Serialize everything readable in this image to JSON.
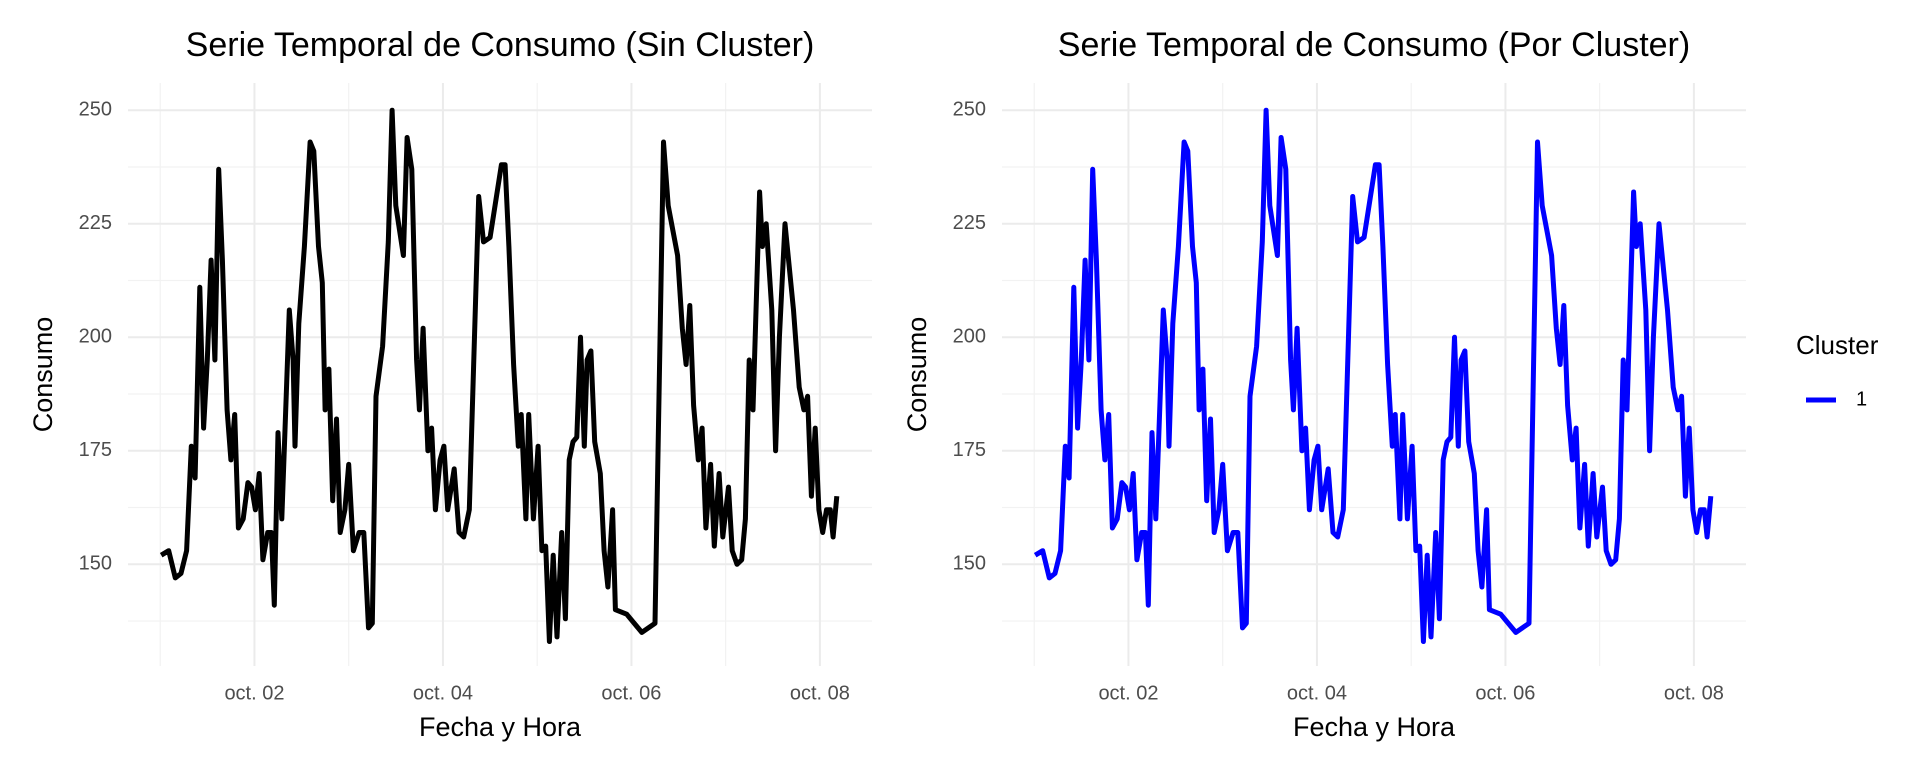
{
  "chart_data": [
    {
      "type": "line",
      "title": "Serie Temporal de Consumo (Sin Cluster)",
      "x_label": "Fecha y Hora",
      "y_label": "Consumo",
      "color": "#000000",
      "grid": true,
      "minor_grid": true,
      "x": [
        1.01,
        1.09,
        1.16,
        1.22,
        1.28,
        1.33,
        1.37,
        1.42,
        1.46,
        1.5,
        1.54,
        1.58,
        1.62,
        1.66,
        1.71,
        1.75,
        1.79,
        1.83,
        1.88,
        1.93,
        1.97,
        2.01,
        2.05,
        2.09,
        2.14,
        2.18,
        2.21,
        2.25,
        2.29,
        2.37,
        2.41,
        2.43,
        2.47,
        2.53,
        2.59,
        2.63,
        2.68,
        2.72,
        2.75,
        2.79,
        2.83,
        2.87,
        2.91,
        2.96,
        3.0,
        3.05,
        3.11,
        3.16,
        3.21,
        3.25,
        3.29,
        3.36,
        3.42,
        3.46,
        3.5,
        3.58,
        3.62,
        3.67,
        3.72,
        3.75,
        3.79,
        3.84,
        3.88,
        3.92,
        3.97,
        4.01,
        4.05,
        4.12,
        4.17,
        4.22,
        4.28,
        4.38,
        4.43,
        4.5,
        4.62,
        4.66,
        4.7,
        4.75,
        4.8,
        4.83,
        4.88,
        4.91,
        4.96,
        5.01,
        5.05,
        5.09,
        5.13,
        5.17,
        5.21,
        5.26,
        5.3,
        5.34,
        5.38,
        5.42,
        5.46,
        5.5,
        5.53,
        5.57,
        5.61,
        5.67,
        5.71,
        5.75,
        5.8,
        5.83,
        5.95,
        6.11,
        6.25,
        6.34,
        6.39,
        6.49,
        6.54,
        6.58,
        6.62,
        6.66,
        6.71,
        6.75,
        6.79,
        6.84,
        6.88,
        6.93,
        6.97,
        7.03,
        7.07,
        7.12,
        7.17,
        7.21,
        7.25,
        7.29,
        7.36,
        7.39,
        7.43,
        7.49,
        7.53,
        7.57,
        7.63,
        7.72,
        7.78,
        7.83,
        7.87,
        7.91,
        7.95,
        7.99,
        8.03,
        8.07,
        8.11,
        8.14,
        8.18
      ],
      "values": [
        152,
        153,
        147,
        148,
        153,
        176,
        169,
        211,
        180,
        195,
        217,
        195,
        237,
        217,
        184,
        173,
        183,
        158,
        160,
        168,
        167,
        162,
        170,
        151,
        157,
        157,
        141,
        179,
        160,
        206,
        195,
        176,
        203,
        220,
        243,
        241,
        220,
        212,
        184,
        193,
        164,
        182,
        157,
        162,
        172,
        153,
        157,
        157,
        136,
        137,
        187,
        198,
        221,
        250,
        229,
        218,
        244,
        237,
        195,
        184,
        202,
        175,
        180,
        162,
        173,
        176,
        162,
        171,
        157,
        156,
        162,
        231,
        221,
        222,
        238,
        238,
        220,
        194,
        176,
        183,
        160,
        183,
        160,
        176,
        153,
        154,
        133,
        152,
        134,
        157,
        138,
        173,
        177,
        178,
        200,
        176,
        195,
        197,
        177,
        170,
        153,
        145,
        162,
        140,
        139,
        135,
        137,
        243,
        229,
        218,
        202,
        194,
        207,
        185,
        173,
        180,
        158,
        172,
        154,
        170,
        156,
        167,
        153,
        150,
        151,
        160,
        195,
        184,
        232,
        220,
        225,
        206,
        175,
        200,
        225,
        206,
        189,
        184,
        187,
        165,
        180,
        162,
        157,
        162,
        162,
        156,
        165
      ],
      "xlim": [
        0.658,
        8.553
      ],
      "xticks": [
        {
          "value": 2,
          "label": "oct. 02"
        },
        {
          "value": 4,
          "label": "oct. 04"
        },
        {
          "value": 6,
          "label": "oct. 06"
        },
        {
          "value": 8,
          "label": "oct. 08"
        }
      ],
      "ylim": [
        127.6,
        256
      ],
      "yticks": [
        150,
        175,
        200,
        225,
        250
      ]
    },
    {
      "type": "line",
      "title": "Serie Temporal de Consumo (Por Cluster)",
      "x_label": "Fecha y Hora",
      "y_label": "Consumo",
      "grid": true,
      "minor_grid": true,
      "legend_title": "Cluster",
      "legend": "right",
      "x": [
        1.01,
        1.09,
        1.16,
        1.22,
        1.28,
        1.33,
        1.37,
        1.42,
        1.46,
        1.5,
        1.54,
        1.58,
        1.62,
        1.66,
        1.71,
        1.75,
        1.79,
        1.83,
        1.88,
        1.93,
        1.97,
        2.01,
        2.05,
        2.09,
        2.14,
        2.18,
        2.21,
        2.25,
        2.29,
        2.37,
        2.41,
        2.43,
        2.47,
        2.53,
        2.59,
        2.63,
        2.68,
        2.72,
        2.75,
        2.79,
        2.83,
        2.87,
        2.91,
        2.96,
        3.0,
        3.05,
        3.11,
        3.16,
        3.21,
        3.25,
        3.29,
        3.36,
        3.42,
        3.46,
        3.5,
        3.58,
        3.62,
        3.67,
        3.72,
        3.75,
        3.79,
        3.84,
        3.88,
        3.92,
        3.97,
        4.01,
        4.05,
        4.12,
        4.17,
        4.22,
        4.28,
        4.38,
        4.43,
        4.5,
        4.62,
        4.66,
        4.7,
        4.75,
        4.8,
        4.83,
        4.88,
        4.91,
        4.96,
        5.01,
        5.05,
        5.09,
        5.13,
        5.17,
        5.21,
        5.26,
        5.3,
        5.34,
        5.38,
        5.42,
        5.46,
        5.5,
        5.53,
        5.57,
        5.61,
        5.67,
        5.71,
        5.75,
        5.8,
        5.83,
        5.95,
        6.11,
        6.25,
        6.34,
        6.39,
        6.49,
        6.54,
        6.58,
        6.62,
        6.66,
        6.71,
        6.75,
        6.79,
        6.84,
        6.88,
        6.93,
        6.97,
        7.03,
        7.07,
        7.12,
        7.17,
        7.21,
        7.25,
        7.29,
        7.36,
        7.39,
        7.43,
        7.49,
        7.53,
        7.57,
        7.63,
        7.72,
        7.78,
        7.83,
        7.87,
        7.91,
        7.95,
        7.99,
        8.03,
        8.07,
        8.11,
        8.14,
        8.18
      ],
      "series": [
        {
          "name": "1",
          "color": "#0000ff",
          "values": [
            152,
            153,
            147,
            148,
            153,
            176,
            169,
            211,
            180,
            195,
            217,
            195,
            237,
            217,
            184,
            173,
            183,
            158,
            160,
            168,
            167,
            162,
            170,
            151,
            157,
            157,
            141,
            179,
            160,
            206,
            195,
            176,
            203,
            220,
            243,
            241,
            220,
            212,
            184,
            193,
            164,
            182,
            157,
            162,
            172,
            153,
            157,
            157,
            136,
            137,
            187,
            198,
            221,
            250,
            229,
            218,
            244,
            237,
            195,
            184,
            202,
            175,
            180,
            162,
            173,
            176,
            162,
            171,
            157,
            156,
            162,
            231,
            221,
            222,
            238,
            238,
            220,
            194,
            176,
            183,
            160,
            183,
            160,
            176,
            153,
            154,
            133,
            152,
            134,
            157,
            138,
            173,
            177,
            178,
            200,
            176,
            195,
            197,
            177,
            170,
            153,
            145,
            162,
            140,
            139,
            135,
            137,
            243,
            229,
            218,
            202,
            194,
            207,
            185,
            173,
            180,
            158,
            172,
            154,
            170,
            156,
            167,
            153,
            150,
            151,
            160,
            195,
            184,
            232,
            220,
            225,
            206,
            175,
            200,
            225,
            206,
            189,
            184,
            187,
            165,
            180,
            162,
            157,
            162,
            162,
            156,
            165
          ]
        }
      ],
      "xlim": [
        0.658,
        8.553
      ],
      "xticks": [
        {
          "value": 2,
          "label": "oct. 02"
        },
        {
          "value": 4,
          "label": "oct. 04"
        },
        {
          "value": 6,
          "label": "oct. 06"
        },
        {
          "value": 8,
          "label": "oct. 08"
        }
      ],
      "ylim": [
        127.6,
        256
      ],
      "yticks": [
        150,
        175,
        200,
        225,
        250
      ]
    }
  ]
}
